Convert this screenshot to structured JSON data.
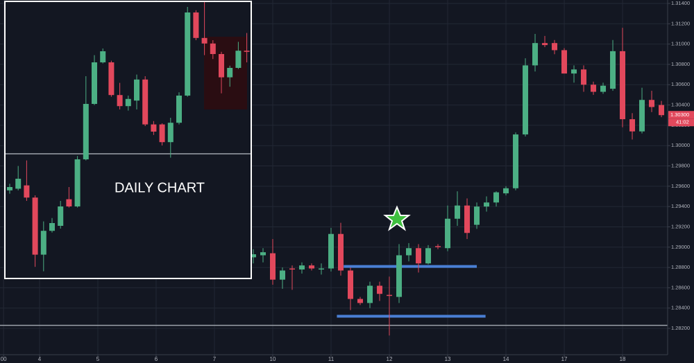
{
  "chart_data": [
    {
      "type": "candlestick",
      "grid": true,
      "up_color": "#4caf84",
      "down_color": "#e2485c",
      "xlim": [
        -4.07,
        64.64
      ],
      "ylim": [
        1.27941,
        1.31434
      ],
      "xticks": [
        {
          "value": -3.7,
          "label": "00"
        },
        {
          "value": 0,
          "label": "4"
        },
        {
          "value": 6,
          "label": "5"
        },
        {
          "value": 12,
          "label": "6"
        },
        {
          "value": 18,
          "label": "7"
        },
        {
          "value": 24,
          "label": "10"
        },
        {
          "value": 30,
          "label": "11"
        },
        {
          "value": 36,
          "label": "12"
        },
        {
          "value": 42,
          "label": "13"
        },
        {
          "value": 48,
          "label": "14"
        },
        {
          "value": 54,
          "label": "17"
        },
        {
          "value": 60,
          "label": "18"
        }
      ],
      "yticks": [
        {
          "value": 1.282,
          "label": "1.28200"
        },
        {
          "value": 1.284,
          "label": "1.28400"
        },
        {
          "value": 1.286,
          "label": "1.28600"
        },
        {
          "value": 1.288,
          "label": "1.28800"
        },
        {
          "value": 1.29,
          "label": "1.29000"
        },
        {
          "value": 1.292,
          "label": "1.29200"
        },
        {
          "value": 1.294,
          "label": "1.29400"
        },
        {
          "value": 1.296,
          "label": "1.29600"
        },
        {
          "value": 1.298,
          "label": "1.29800"
        },
        {
          "value": 1.3,
          "label": "1.30000"
        },
        {
          "value": 1.302,
          "label": "1.30200"
        },
        {
          "value": 1.304,
          "label": "1.30400"
        },
        {
          "value": 1.306,
          "label": "1.30600"
        },
        {
          "value": 1.308,
          "label": "1.30800"
        },
        {
          "value": 1.31,
          "label": "1.31000"
        },
        {
          "value": 1.312,
          "label": "1.31200"
        },
        {
          "value": 1.314,
          "label": "1.31400"
        }
      ],
      "x": [
        22,
        23,
        24,
        25,
        26,
        27,
        28,
        29,
        30,
        31,
        32,
        33,
        34,
        35,
        36,
        37,
        38,
        39,
        40,
        41,
        42,
        43,
        44,
        45,
        46,
        47,
        48,
        49,
        50,
        51,
        52,
        53,
        54,
        55,
        56,
        57,
        58,
        59,
        60,
        61,
        62,
        63,
        64
      ],
      "open": [
        1.289,
        1.2892,
        1.2894,
        1.2868,
        1.2879,
        1.2878,
        1.2882,
        1.2878,
        1.2879,
        1.2913,
        1.2877,
        1.2849,
        1.2845,
        1.2862,
        1.2853,
        1.2851,
        1.2892,
        1.2899,
        1.2884,
        1.2901,
        1.2899,
        1.2928,
        1.2941,
        1.2922,
        1.294,
        1.2944,
        1.2953,
        1.2958,
        1.3011,
        1.3079,
        1.3101,
        1.3101,
        1.3094,
        1.3071,
        1.3075,
        1.306,
        1.3053,
        1.3056,
        1.3093,
        1.3026,
        1.3014,
        1.3045,
        1.304
      ],
      "high": [
        1.2898,
        1.2899,
        1.2908,
        1.288,
        1.2882,
        1.2885,
        1.2884,
        1.2884,
        1.2919,
        1.2924,
        1.288,
        1.2851,
        1.2866,
        1.2866,
        1.2871,
        1.2903,
        1.2904,
        1.2903,
        1.2902,
        1.2903,
        1.2941,
        1.2955,
        1.2948,
        1.2944,
        1.295,
        1.2955,
        1.296,
        1.3013,
        1.3086,
        1.311,
        1.3108,
        1.3104,
        1.3096,
        1.3079,
        1.3079,
        1.3063,
        1.3062,
        1.3104,
        1.3116,
        1.3032,
        1.3057,
        1.3054,
        1.3044
      ],
      "low": [
        1.2884,
        1.2885,
        1.2863,
        1.2859,
        1.2858,
        1.2874,
        1.2877,
        1.2873,
        1.2876,
        1.2872,
        1.2838,
        1.2843,
        1.284,
        1.2847,
        1.2813,
        1.2845,
        1.2886,
        1.2875,
        1.2883,
        1.2898,
        1.2896,
        1.2921,
        1.2908,
        1.2918,
        1.2935,
        1.294,
        1.2951,
        1.2956,
        1.3009,
        1.3073,
        1.3097,
        1.309,
        1.3071,
        1.3062,
        1.3053,
        1.305,
        1.3051,
        1.3054,
        1.3018,
        1.3006,
        1.3012,
        1.3033,
        1.3028
      ],
      "close": [
        1.2893,
        1.2895,
        1.2868,
        1.2877,
        1.2878,
        1.2882,
        1.2879,
        1.2879,
        1.2913,
        1.2877,
        1.2849,
        1.2845,
        1.2862,
        1.2854,
        1.2852,
        1.2892,
        1.2899,
        1.2884,
        1.2899,
        1.29,
        1.2928,
        1.2941,
        1.2914,
        1.294,
        1.2944,
        1.2954,
        1.2958,
        1.3011,
        1.3079,
        1.3101,
        1.3099,
        1.3094,
        1.3071,
        1.3075,
        1.306,
        1.3053,
        1.3059,
        1.3093,
        1.3026,
        1.3014,
        1.3045,
        1.3038,
        1.303
      ],
      "hlines": [
        {
          "value": 1.2823,
          "color": "#9ea3ab"
        },
        {
          "value": 1.2881,
          "color": "#4a7fd4",
          "x": [
            31.3,
            45.0
          ]
        },
        {
          "value": 1.2832,
          "color": "#4a7fd4",
          "x": [
            30.6,
            45.9
          ]
        }
      ],
      "price_tag": {
        "value": 1.303,
        "label": "1.30300"
      },
      "countdown": "41:02"
    },
    {
      "type": "candlestick",
      "title": "DAILY CHART",
      "up_color": "#4caf84",
      "down_color": "#e2485c",
      "ylim": [
        1.26,
        1.31
      ],
      "open": [
        1.2759,
        1.2762,
        1.2768,
        1.2746,
        1.2643,
        1.2686,
        1.2695,
        1.2743,
        1.273,
        1.2815,
        1.2915,
        1.299,
        1.299,
        1.2931,
        1.2911,
        1.2921,
        1.2959,
        1.2878,
        1.2878,
        1.2846,
        1.2881,
        1.293,
        1.308,
        1.3034,
        1.3024,
        1.3005,
        1.2963,
        1.298,
        1.3011
      ],
      "high": [
        1.2771,
        1.2803,
        1.2813,
        1.275,
        1.2703,
        1.2709,
        1.274,
        1.2765,
        1.2821,
        1.2965,
        1.3003,
        1.3015,
        1.2993,
        1.2953,
        1.293,
        1.2968,
        1.2965,
        1.2884,
        1.288,
        1.289,
        1.2936,
        1.309,
        1.3084,
        1.3099,
        1.303,
        1.3009,
        1.2984,
        1.3027,
        1.3043
      ],
      "low": [
        1.2753,
        1.2759,
        1.274,
        1.2621,
        1.2613,
        1.2683,
        1.269,
        1.2728,
        1.2728,
        1.2813,
        1.2913,
        1.2988,
        1.2928,
        1.2905,
        1.2903,
        1.2905,
        1.2875,
        1.2859,
        1.284,
        1.2818,
        1.2878,
        1.2928,
        1.303,
        1.3003,
        1.2996,
        1.2934,
        1.2946,
        1.2978,
        1.299
      ],
      "close": [
        1.2765,
        1.278,
        1.2746,
        1.2643,
        1.2686,
        1.27,
        1.273,
        1.273,
        1.2815,
        1.2915,
        1.299,
        1.301,
        1.2931,
        1.2911,
        1.2924,
        1.2959,
        1.2878,
        1.2865,
        1.2846,
        1.2881,
        1.293,
        1.308,
        1.3034,
        1.3024,
        1.3005,
        1.2963,
        1.298,
        1.3011,
        1.3009
      ],
      "hlines": [
        {
          "value": 1.2825,
          "color": "#9ea3ab"
        }
      ]
    }
  ]
}
